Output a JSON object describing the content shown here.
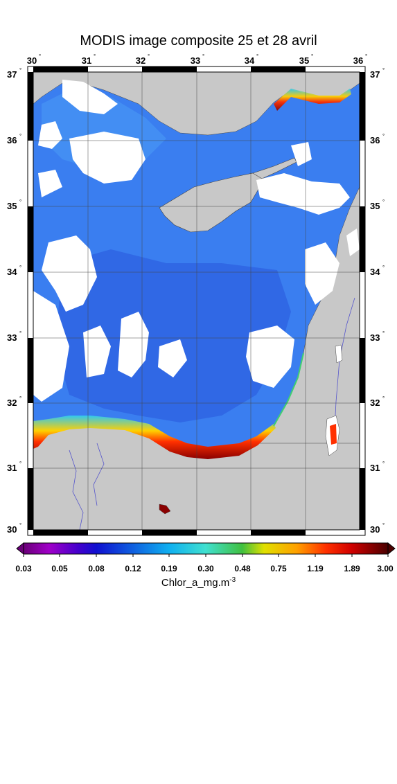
{
  "title": "MODIS image composite 25 et 28 avril",
  "lon_labels": [
    "30",
    "31",
    "32",
    "33",
    "34",
    "35",
    "36"
  ],
  "lat_labels": [
    "37",
    "36",
    "35",
    "34",
    "33",
    "32",
    "31",
    "30"
  ],
  "colorbar": {
    "ticks": [
      "0.03",
      "0.05",
      "0.08",
      "0.12",
      "0.19",
      "0.30",
      "0.48",
      "0.75",
      "1.19",
      "1.89",
      "3.00"
    ],
    "label_main": "Chlor_a_mg.m",
    "label_exp": "-3",
    "colors": [
      "#4b005a",
      "#8a00b0",
      "#4a00c8",
      "#1a1acc",
      "#1060e0",
      "#10a8f0",
      "#20d8e0",
      "#30c860",
      "#d8e800",
      "#ffc000",
      "#ff6000",
      "#e00000",
      "#8a0000",
      "#5a0000"
    ]
  },
  "map": {
    "lon_range": [
      30,
      36
    ],
    "lat_range": [
      30,
      37
    ],
    "land_color": "#c8c8c8",
    "water_color": "#3a7ef0",
    "cloud_color": "#ffffff"
  }
}
